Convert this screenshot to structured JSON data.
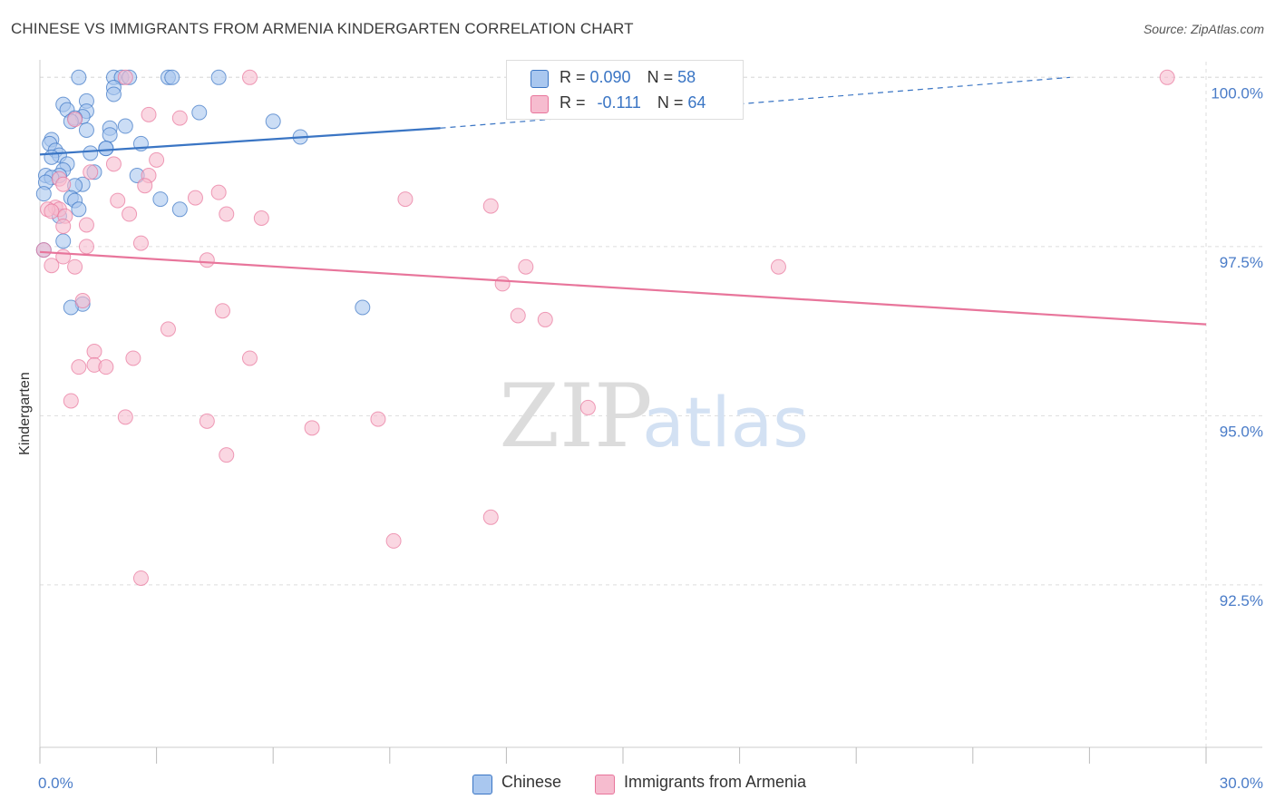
{
  "title": "CHINESE VS IMMIGRANTS FROM ARMENIA KINDERGARTEN CORRELATION CHART",
  "source": "Source: ZipAtlas.com",
  "watermark": {
    "zip": "ZIP",
    "atlas": "atlas"
  },
  "colors": {
    "blue": "#3a75c4",
    "blue_fill": "#a9c7ef",
    "pink": "#e8759b",
    "pink_fill": "#f6bccf",
    "grid": "#dddddd",
    "axis_text": "#4a7cc8"
  },
  "legend": {
    "series1": {
      "r_label": "R = ",
      "r_value": "0.090",
      "n_label": "N = ",
      "n_value": "58"
    },
    "series2": {
      "r_label": "R = ",
      "r_value": "-0.111",
      "n_label": "N = ",
      "n_value": "64"
    }
  },
  "bottom_legend": {
    "series1": "Chinese",
    "series2": "Immigrants from Armenia"
  },
  "chart_data": {
    "type": "scatter",
    "title": "CHINESE VS IMMIGRANTS FROM ARMENIA KINDERGARTEN CORRELATION CHART",
    "xlabel": "",
    "ylabel": "Kindergarten",
    "xlim": [
      0,
      30
    ],
    "ylim": [
      90.1,
      100.5
    ],
    "x_tick_labels": [
      "0.0%",
      "30.0%"
    ],
    "x_tick_values": [
      0,
      30
    ],
    "x_minor_ticks": [
      3,
      6,
      9,
      12,
      15,
      18,
      21,
      24,
      27
    ],
    "y_ticks": [
      92.5,
      95.0,
      97.5,
      100.0
    ],
    "y_tick_labels": [
      "92.5%",
      "95.0%",
      "97.5%",
      "100.0%"
    ],
    "grid": true,
    "legend_position": "top-center",
    "series": [
      {
        "name": "Chinese",
        "color": "#3a75c4",
        "r": 0.09,
        "n": 58,
        "trend": {
          "x0": 0,
          "y0": 98.86,
          "x1": 10.3,
          "y1": 99.25,
          "dashed_to_x": 26.5,
          "dashed_to_y": 100.0
        },
        "points": [
          [
            1.0,
            100.0
          ],
          [
            1.9,
            100.0
          ],
          [
            2.1,
            100.0
          ],
          [
            2.3,
            100.0
          ],
          [
            3.3,
            100.0
          ],
          [
            3.4,
            100.0
          ],
          [
            4.6,
            100.0
          ],
          [
            1.9,
            99.85
          ],
          [
            1.9,
            99.75
          ],
          [
            1.2,
            99.65
          ],
          [
            0.6,
            99.6
          ],
          [
            0.7,
            99.52
          ],
          [
            1.2,
            99.5
          ],
          [
            4.1,
            99.48
          ],
          [
            1.1,
            99.42
          ],
          [
            0.9,
            99.4
          ],
          [
            0.8,
            99.35
          ],
          [
            6.0,
            99.35
          ],
          [
            2.2,
            99.28
          ],
          [
            1.8,
            99.25
          ],
          [
            1.2,
            99.22
          ],
          [
            1.8,
            99.15
          ],
          [
            6.7,
            99.12
          ],
          [
            0.3,
            99.08
          ],
          [
            0.25,
            99.02
          ],
          [
            2.6,
            99.02
          ],
          [
            1.7,
            98.95
          ],
          [
            1.7,
            98.95
          ],
          [
            0.4,
            98.92
          ],
          [
            1.3,
            98.88
          ],
          [
            0.5,
            98.85
          ],
          [
            0.3,
            98.82
          ],
          [
            0.7,
            98.72
          ],
          [
            0.6,
            98.63
          ],
          [
            1.4,
            98.6
          ],
          [
            0.15,
            98.55
          ],
          [
            0.5,
            98.55
          ],
          [
            2.5,
            98.55
          ],
          [
            0.3,
            98.52
          ],
          [
            0.15,
            98.45
          ],
          [
            1.1,
            98.42
          ],
          [
            0.9,
            98.4
          ],
          [
            0.1,
            98.28
          ],
          [
            0.8,
            98.22
          ],
          [
            3.1,
            98.2
          ],
          [
            0.9,
            98.18
          ],
          [
            3.6,
            98.05
          ],
          [
            1.0,
            98.05
          ],
          [
            0.5,
            97.95
          ],
          [
            0.6,
            97.58
          ],
          [
            0.1,
            97.45
          ],
          [
            1.1,
            96.65
          ],
          [
            0.8,
            96.6
          ],
          [
            8.3,
            96.6
          ]
        ]
      },
      {
        "name": "Immigrants from Armenia",
        "color": "#e8759b",
        "r": -0.111,
        "n": 64,
        "trend": {
          "x0": 0,
          "y0": 97.42,
          "x1": 30,
          "y1": 96.35
        },
        "points": [
          [
            2.2,
            100.0
          ],
          [
            5.4,
            100.0
          ],
          [
            29.0,
            100.0
          ],
          [
            2.8,
            99.45
          ],
          [
            3.6,
            99.4
          ],
          [
            0.9,
            99.38
          ],
          [
            3.0,
            98.78
          ],
          [
            1.9,
            98.72
          ],
          [
            1.3,
            98.6
          ],
          [
            2.8,
            98.55
          ],
          [
            0.5,
            98.5
          ],
          [
            0.6,
            98.42
          ],
          [
            2.7,
            98.4
          ],
          [
            4.6,
            98.3
          ],
          [
            4.0,
            98.22
          ],
          [
            9.4,
            98.2
          ],
          [
            2.0,
            98.18
          ],
          [
            11.6,
            98.1
          ],
          [
            0.4,
            98.08
          ],
          [
            0.5,
            98.05
          ],
          [
            0.2,
            98.05
          ],
          [
            0.3,
            98.02
          ],
          [
            4.8,
            97.98
          ],
          [
            2.3,
            97.98
          ],
          [
            0.65,
            97.95
          ],
          [
            5.7,
            97.92
          ],
          [
            1.2,
            97.82
          ],
          [
            0.6,
            97.8
          ],
          [
            2.6,
            97.55
          ],
          [
            1.2,
            97.5
          ],
          [
            0.1,
            97.45
          ],
          [
            0.6,
            97.35
          ],
          [
            4.3,
            97.3
          ],
          [
            0.3,
            97.22
          ],
          [
            0.9,
            97.2
          ],
          [
            12.5,
            97.2
          ],
          [
            19.0,
            97.2
          ],
          [
            11.9,
            96.95
          ],
          [
            1.1,
            96.7
          ],
          [
            4.7,
            96.55
          ],
          [
            12.3,
            96.48
          ],
          [
            13.0,
            96.42
          ],
          [
            3.3,
            96.28
          ],
          [
            1.4,
            95.95
          ],
          [
            2.4,
            95.85
          ],
          [
            5.4,
            95.85
          ],
          [
            1.4,
            95.75
          ],
          [
            1.7,
            95.72
          ],
          [
            1.0,
            95.72
          ],
          [
            0.8,
            95.22
          ],
          [
            14.1,
            95.12
          ],
          [
            2.2,
            94.98
          ],
          [
            8.7,
            94.95
          ],
          [
            4.3,
            94.92
          ],
          [
            7.0,
            94.82
          ],
          [
            4.8,
            94.42
          ],
          [
            11.6,
            93.5
          ],
          [
            9.1,
            93.15
          ],
          [
            2.6,
            92.6
          ]
        ]
      }
    ]
  }
}
